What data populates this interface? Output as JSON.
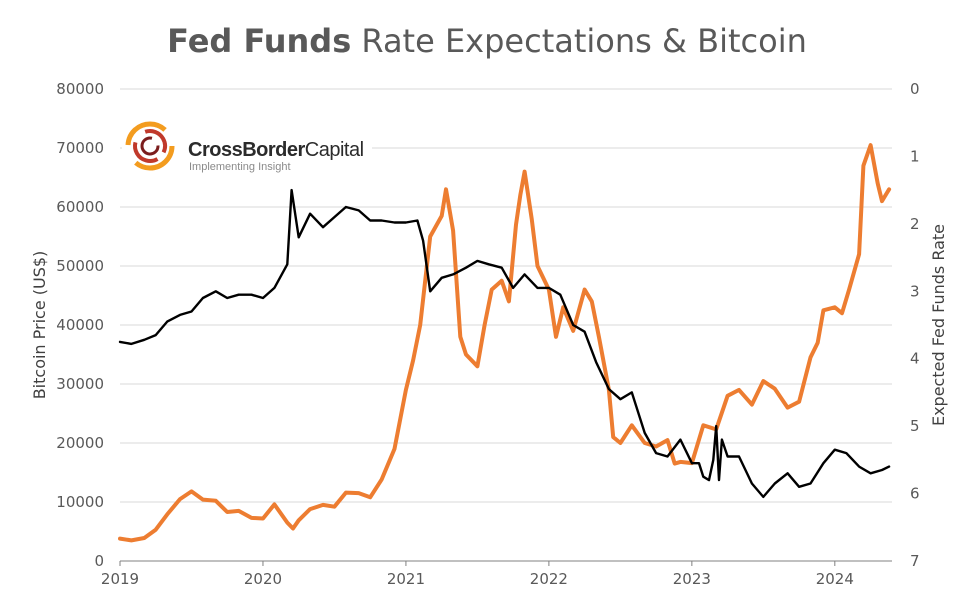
{
  "title_bold": "Fed Funds",
  "title_rest": " Rate Expectations & Bitcoin",
  "logo": {
    "name_bold": "CrossBorder",
    "name_rest": "Capital",
    "tagline": "Implementing Insight"
  },
  "colors": {
    "bitcoin": "#000000",
    "fed": "#ed7d31",
    "grid": "#d9d9d9",
    "text": "#595959"
  },
  "chart_data": {
    "type": "line",
    "title": "Fed Funds Rate Expectations & Bitcoin",
    "xlabel": "",
    "ylabel": "Bitcoin Price (US$)",
    "y2label": "Expected Fed Funds Rate",
    "x_ticks": [
      "2019",
      "2020",
      "2021",
      "2022",
      "2023",
      "2024"
    ],
    "y_ticks": [
      0,
      10000,
      20000,
      30000,
      40000,
      50000,
      60000,
      70000,
      80000
    ],
    "y2_ticks": [
      0,
      1,
      2,
      3,
      4,
      5,
      6,
      7
    ],
    "xlim": [
      2019.0,
      2024.4
    ],
    "ylim": [
      0,
      80000
    ],
    "y2lim": [
      7,
      0
    ],
    "y2_inverted": true,
    "grid": true,
    "series": [
      {
        "name": "Bitcoin Price (US$)",
        "axis": "left",
        "color": "#ed7d31",
        "x": [
          2019.0,
          2019.08,
          2019.17,
          2019.25,
          2019.33,
          2019.42,
          2019.5,
          2019.58,
          2019.67,
          2019.75,
          2019.83,
          2019.92,
          2020.0,
          2020.08,
          2020.17,
          2020.21,
          2020.25,
          2020.33,
          2020.42,
          2020.5,
          2020.58,
          2020.67,
          2020.75,
          2020.83,
          2020.92,
          2021.0,
          2021.05,
          2021.1,
          2021.17,
          2021.25,
          2021.28,
          2021.33,
          2021.38,
          2021.42,
          2021.5,
          2021.55,
          2021.6,
          2021.67,
          2021.72,
          2021.77,
          2021.8,
          2021.83,
          2021.88,
          2021.92,
          2022.0,
          2022.05,
          2022.1,
          2022.17,
          2022.25,
          2022.3,
          2022.35,
          2022.42,
          2022.45,
          2022.5,
          2022.58,
          2022.67,
          2022.75,
          2022.83,
          2022.88,
          2022.92,
          2023.0,
          2023.08,
          2023.17,
          2023.25,
          2023.33,
          2023.42,
          2023.5,
          2023.58,
          2023.67,
          2023.75,
          2023.83,
          2023.88,
          2023.92,
          2024.0,
          2024.05,
          2024.1,
          2024.17,
          2024.2,
          2024.25,
          2024.3,
          2024.33,
          2024.38
        ],
        "values": [
          3800,
          3500,
          3900,
          5300,
          7900,
          10500,
          11800,
          10400,
          10200,
          8300,
          8500,
          7300,
          7200,
          9600,
          6500,
          5500,
          6900,
          8800,
          9500,
          9200,
          11600,
          11500,
          10800,
          13800,
          19000,
          29000,
          34000,
          40000,
          55000,
          58500,
          63000,
          56000,
          38000,
          35000,
          33000,
          40000,
          46000,
          47500,
          44000,
          57000,
          62000,
          66000,
          58000,
          50000,
          46000,
          38000,
          43000,
          39000,
          46000,
          44000,
          38000,
          29000,
          21000,
          20000,
          23000,
          20000,
          19400,
          20500,
          16500,
          16800,
          16600,
          23000,
          22300,
          28000,
          29000,
          26500,
          30500,
          29200,
          26000,
          27000,
          34500,
          37000,
          42500,
          43000,
          42000,
          46000,
          52000,
          67000,
          70500,
          64000,
          61000,
          63000
        ]
      },
      {
        "name": "Expected Fed Funds Rate",
        "axis": "right",
        "color": "#000000",
        "x": [
          2019.0,
          2019.08,
          2019.17,
          2019.25,
          2019.33,
          2019.42,
          2019.5,
          2019.58,
          2019.67,
          2019.75,
          2019.83,
          2019.92,
          2020.0,
          2020.08,
          2020.17,
          2020.2,
          2020.25,
          2020.33,
          2020.42,
          2020.5,
          2020.58,
          2020.67,
          2020.75,
          2020.83,
          2020.92,
          2021.0,
          2021.08,
          2021.12,
          2021.17,
          2021.25,
          2021.33,
          2021.42,
          2021.5,
          2021.58,
          2021.67,
          2021.75,
          2021.83,
          2021.92,
          2022.0,
          2022.08,
          2022.17,
          2022.25,
          2022.33,
          2022.42,
          2022.5,
          2022.58,
          2022.67,
          2022.75,
          2022.83,
          2022.92,
          2023.0,
          2023.05,
          2023.08,
          2023.12,
          2023.15,
          2023.17,
          2023.19,
          2023.21,
          2023.25,
          2023.33,
          2023.42,
          2023.5,
          2023.58,
          2023.67,
          2023.75,
          2023.83,
          2023.92,
          2024.0,
          2024.08,
          2024.17,
          2024.25,
          2024.33,
          2024.38
        ],
        "values": [
          3.75,
          3.78,
          3.72,
          3.65,
          3.45,
          3.35,
          3.3,
          3.1,
          3.0,
          3.1,
          3.05,
          3.05,
          3.1,
          2.95,
          2.6,
          1.5,
          2.2,
          1.85,
          2.05,
          1.9,
          1.75,
          1.8,
          1.95,
          1.95,
          1.98,
          1.98,
          1.95,
          2.25,
          3.0,
          2.8,
          2.75,
          2.65,
          2.55,
          2.6,
          2.65,
          2.95,
          2.75,
          2.95,
          2.95,
          3.05,
          3.5,
          3.6,
          4.05,
          4.45,
          4.6,
          4.5,
          5.1,
          5.4,
          5.45,
          5.2,
          5.55,
          5.55,
          5.75,
          5.8,
          5.5,
          5.0,
          5.8,
          5.2,
          5.45,
          5.45,
          5.85,
          6.05,
          5.85,
          5.7,
          5.9,
          5.85,
          5.55,
          5.35,
          5.4,
          5.6,
          5.7,
          5.65,
          5.6
        ]
      }
    ]
  }
}
